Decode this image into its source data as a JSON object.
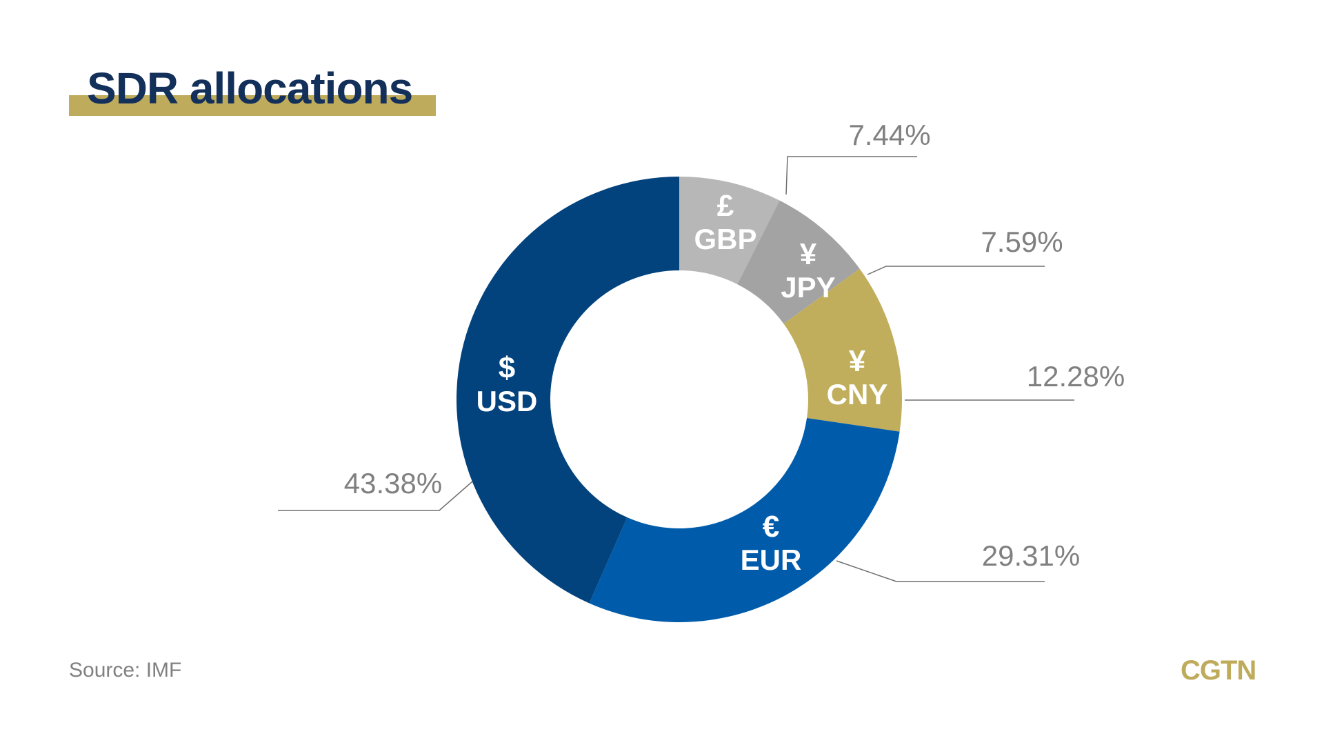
{
  "title": "SDR allocations",
  "source": "Source: IMF",
  "brand": "CGTN",
  "colors": {
    "title": "#13305a",
    "title_bar": "#bfab5c",
    "brand": "#bfab5c"
  },
  "chart_data": {
    "type": "pie",
    "subtype": "donut",
    "title": "SDR allocations",
    "slices": [
      {
        "symbol": "£",
        "label": "GBP",
        "value": 7.44,
        "pct_label": "7.44%",
        "color": "#b7b7b7"
      },
      {
        "symbol": "¥",
        "label": "JPY",
        "value": 7.59,
        "pct_label": "7.59%",
        "color": "#a3a3a3"
      },
      {
        "symbol": "¥",
        "label": "CNY",
        "value": 12.28,
        "pct_label": "12.28%",
        "color": "#c1ae5c"
      },
      {
        "symbol": "€",
        "label": "EUR",
        "value": 29.31,
        "pct_label": "29.31%",
        "color": "#005cab"
      },
      {
        "symbol": "$",
        "label": "USD",
        "value": 43.38,
        "pct_label": "43.38%",
        "color": "#02427d"
      }
    ],
    "start": "top, clockwise"
  }
}
